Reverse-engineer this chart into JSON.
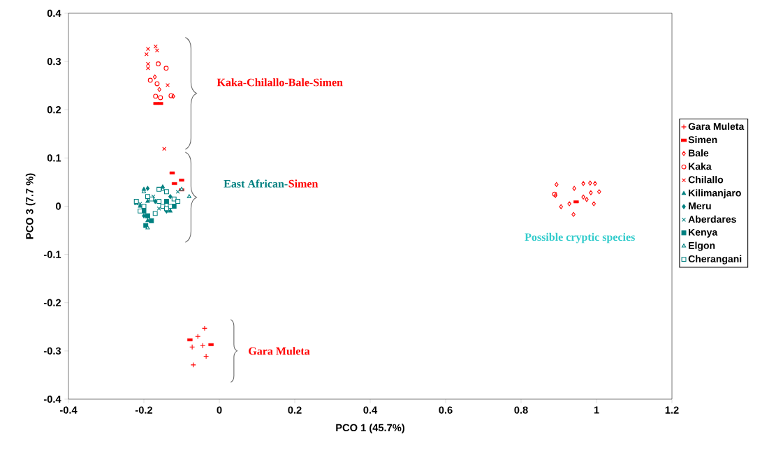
{
  "chart_data": {
    "type": "scatter",
    "xlabel": "PCO 1 (45.7%)",
    "ylabel": "PCO 3 (7.7 %)",
    "xlim": [
      -0.4,
      1.2
    ],
    "ylim": [
      -0.4,
      0.4
    ],
    "xticks": [
      -0.4,
      -0.2,
      0,
      0.2,
      0.4,
      0.6,
      0.8,
      1,
      1.2
    ],
    "yticks": [
      -0.4,
      -0.3,
      -0.2,
      -0.1,
      0,
      0.1,
      0.2,
      0.3,
      0.4
    ],
    "grid": false,
    "legend": "right",
    "annotations": [
      "Kaka-Chilallo-Bale-Simen",
      "East African-",
      "Simen",
      "Possible cryptic species",
      "Gara Muleta"
    ],
    "series": [
      {
        "name": "Gara Muleta",
        "color": "#ff0000",
        "marker": "plus",
        "x": [
          -0.039,
          -0.057,
          -0.072,
          -0.044,
          -0.035,
          -0.069
        ],
        "values": [
          -0.253,
          -0.27,
          -0.292,
          -0.289,
          -0.311,
          -0.329
        ]
      },
      {
        "name": "Simen",
        "color": "#ff0000",
        "x": [
          -0.168,
          -0.156,
          -0.125,
          -0.1,
          -0.119,
          -0.1,
          -0.078,
          -0.022,
          0.946
        ],
        "values": [
          0.213,
          0.213,
          0.069,
          0.054,
          0.047,
          0.034,
          -0.277,
          -0.287,
          0.009
        ]
      },
      {
        "name": "Bale",
        "color": "#ff0000",
        "marker": "diamond",
        "x": [
          -0.171,
          -0.159,
          -0.122,
          0.894,
          0.891,
          0.906,
          0.939,
          0.941,
          0.965,
          0.983,
          0.996,
          1.007,
          0.974,
          0.993,
          0.965,
          0.928,
          0.985
        ],
        "values": [
          0.268,
          0.242,
          0.228,
          0.045,
          0.022,
          -0.001,
          -0.017,
          0.037,
          0.047,
          0.048,
          0.047,
          0.03,
          0.014,
          0.005,
          0.019,
          0.005,
          0.028
        ]
      },
      {
        "name": "Kaka",
        "color": "#ff0000",
        "marker": "circle",
        "x": [
          -0.162,
          -0.141,
          -0.183,
          -0.165,
          -0.169,
          -0.156,
          -0.128,
          0.889
        ],
        "values": [
          0.295,
          0.286,
          0.261,
          0.254,
          0.228,
          0.225,
          0.229,
          0.025
        ]
      },
      {
        "name": "Chilallo",
        "color": "#ff0000",
        "marker": "cross",
        "x": [
          -0.189,
          -0.193,
          -0.189,
          -0.189,
          -0.137,
          -0.146,
          -0.169,
          -0.165
        ],
        "values": [
          0.326,
          0.315,
          0.295,
          0.286,
          0.251,
          0.119,
          0.331,
          0.323
        ]
      },
      {
        "name": "Kilimanjaro",
        "color": "#008080",
        "marker": "triangle_filled",
        "x": [
          -0.2,
          -0.21,
          -0.19,
          -0.15,
          -0.13,
          -0.19
        ],
        "values": [
          0.035,
          0.0,
          -0.03,
          0.04,
          -0.01,
          0.01
        ]
      },
      {
        "name": "Meru",
        "color": "#008080",
        "marker": "diamond_filled",
        "x": [
          -0.19,
          -0.2,
          -0.17,
          -0.13,
          -0.14
        ],
        "values": [
          0.037,
          -0.02,
          0.01,
          0.02,
          -0.01
        ]
      },
      {
        "name": "Aberdares",
        "color": "#008080",
        "marker": "cross",
        "x": [
          -0.175,
          -0.11,
          -0.16,
          -0.21
        ],
        "values": [
          0.02,
          0.03,
          -0.005,
          0.005
        ]
      },
      {
        "name": "Kenya",
        "color": "#008080",
        "marker": "square_filled",
        "x": [
          -0.195,
          -0.19,
          -0.2,
          -0.18,
          -0.14,
          -0.12
        ],
        "values": [
          -0.04,
          -0.02,
          -0.01,
          -0.03,
          0.01,
          0.0
        ]
      },
      {
        "name": "Elgon",
        "color": "#008080",
        "marker": "triangle",
        "x": [
          -0.2,
          -0.08,
          -0.1,
          -0.22,
          -0.15,
          -0.19
        ],
        "values": [
          0.03,
          0.02,
          0.035,
          0.005,
          0.035,
          -0.045
        ]
      },
      {
        "name": "Cherangani",
        "color": "#008080",
        "marker": "square",
        "x": [
          -0.22,
          -0.2,
          -0.18,
          -0.16,
          -0.14,
          -0.12,
          -0.13,
          -0.21,
          -0.17,
          -0.15,
          -0.11,
          -0.16,
          -0.19,
          -0.14
        ],
        "values": [
          0.01,
          0.0,
          0.015,
          0.01,
          0.03,
          0.015,
          0.0,
          -0.01,
          -0.015,
          0.0,
          0.01,
          0.035,
          0.02,
          -0.005
        ]
      }
    ]
  }
}
